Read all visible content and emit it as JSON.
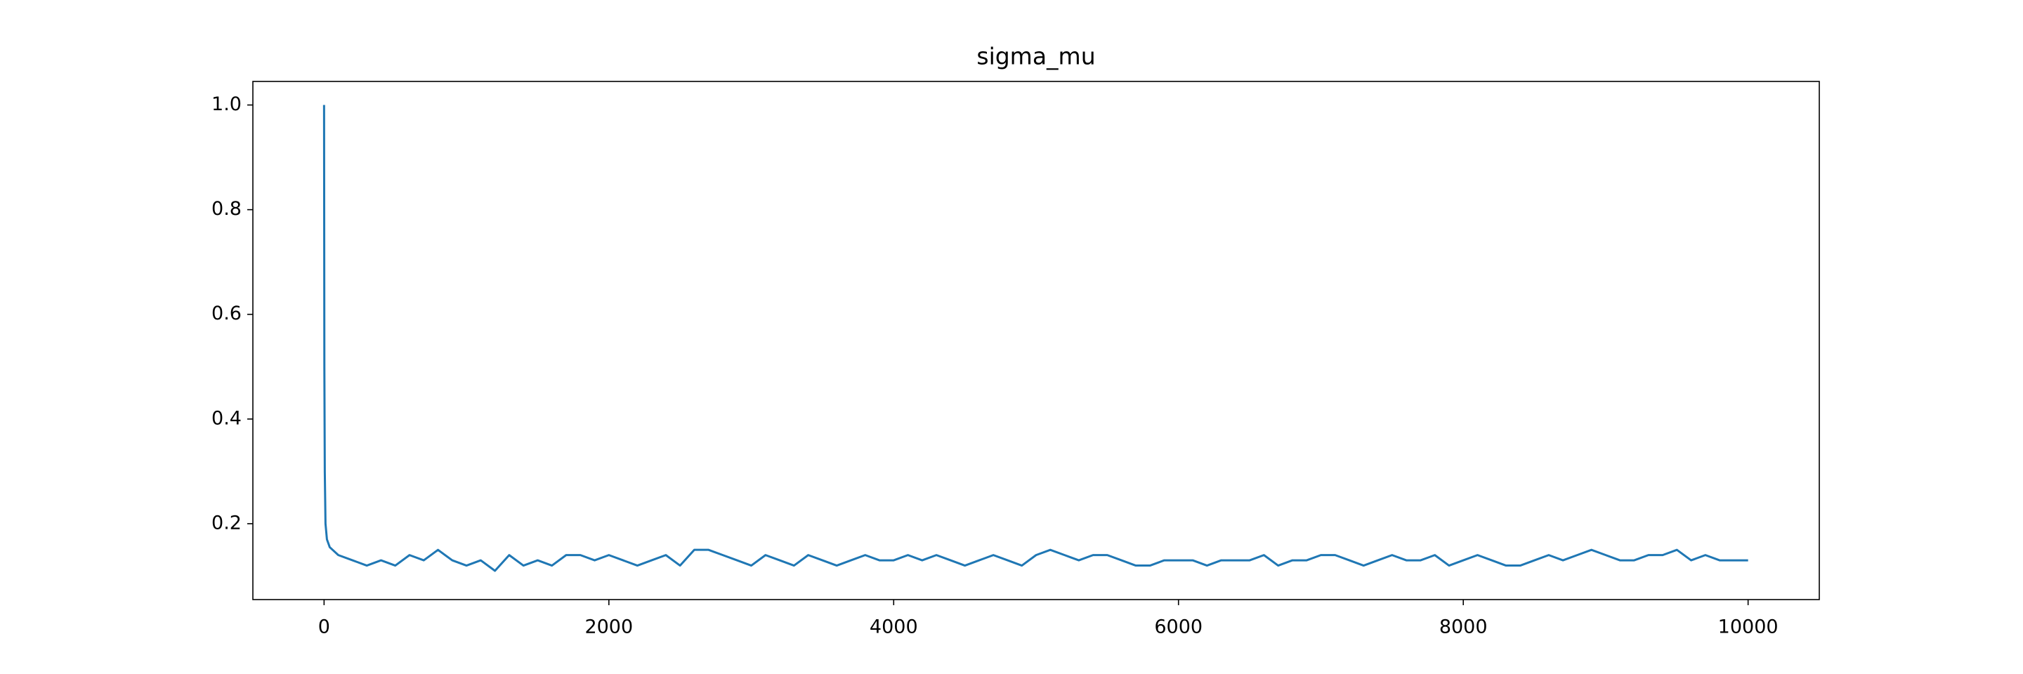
{
  "chart_data": {
    "type": "line",
    "title": "sigma_mu",
    "x": [
      0,
      2,
      5,
      10,
      20,
      40,
      60,
      100,
      200,
      300,
      400,
      500,
      600,
      700,
      800,
      900,
      1000,
      1100,
      1200,
      1300,
      1400,
      1500,
      1600,
      1700,
      1800,
      1900,
      2000,
      2100,
      2200,
      2300,
      2400,
      2500,
      2600,
      2700,
      2800,
      2900,
      3000,
      3100,
      3200,
      3300,
      3400,
      3500,
      3600,
      3700,
      3800,
      3900,
      4000,
      4100,
      4200,
      4300,
      4400,
      4500,
      4600,
      4700,
      4800,
      4900,
      5000,
      5100,
      5200,
      5300,
      5400,
      5500,
      5600,
      5700,
      5800,
      5900,
      6000,
      6100,
      6200,
      6300,
      6400,
      6500,
      6600,
      6700,
      6800,
      6900,
      7000,
      7100,
      7200,
      7300,
      7400,
      7500,
      7600,
      7700,
      7800,
      7900,
      8000,
      8100,
      8200,
      8300,
      8400,
      8500,
      8600,
      8700,
      8800,
      8900,
      9000,
      9100,
      9200,
      9300,
      9400,
      9500,
      9600,
      9700,
      9800,
      9900,
      10000
    ],
    "values": [
      1.0,
      0.5,
      0.3,
      0.2,
      0.17,
      0.155,
      0.15,
      0.14,
      0.13,
      0.12,
      0.13,
      0.12,
      0.14,
      0.13,
      0.15,
      0.13,
      0.12,
      0.13,
      0.11,
      0.14,
      0.12,
      0.13,
      0.12,
      0.14,
      0.14,
      0.13,
      0.14,
      0.13,
      0.12,
      0.13,
      0.14,
      0.12,
      0.15,
      0.15,
      0.14,
      0.13,
      0.12,
      0.14,
      0.13,
      0.12,
      0.14,
      0.13,
      0.12,
      0.13,
      0.14,
      0.13,
      0.13,
      0.14,
      0.13,
      0.14,
      0.13,
      0.12,
      0.13,
      0.14,
      0.13,
      0.12,
      0.14,
      0.15,
      0.14,
      0.13,
      0.14,
      0.14,
      0.13,
      0.12,
      0.12,
      0.13,
      0.13,
      0.13,
      0.12,
      0.13,
      0.13,
      0.13,
      0.14,
      0.12,
      0.13,
      0.13,
      0.14,
      0.14,
      0.13,
      0.12,
      0.13,
      0.14,
      0.13,
      0.13,
      0.14,
      0.12,
      0.13,
      0.14,
      0.13,
      0.12,
      0.12,
      0.13,
      0.14,
      0.13,
      0.14,
      0.15,
      0.14,
      0.13,
      0.13,
      0.14,
      0.14,
      0.15,
      0.13,
      0.14,
      0.13,
      0.13,
      0.13
    ],
    "color": "#1f77b4",
    "xlim": [
      -500,
      10500
    ],
    "xticks": [
      0,
      2000,
      4000,
      6000,
      8000,
      10000
    ],
    "ylim": [
      0.055,
      1.045
    ],
    "yticks": [
      0.2,
      0.4,
      0.6,
      0.8,
      {
        "value": 1,
        "label": "1.0"
      }
    ],
    "grid": false
  }
}
